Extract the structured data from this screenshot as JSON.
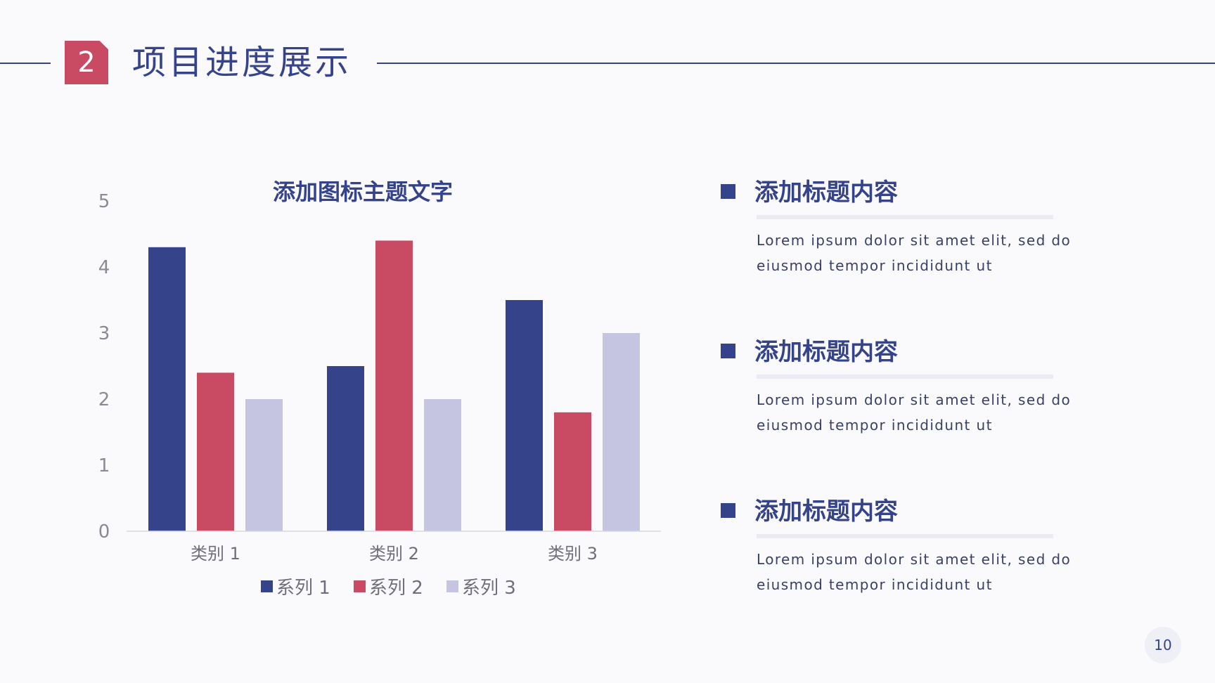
{
  "header": {
    "section_number": "2",
    "title": "项目进度展示"
  },
  "colors": {
    "navy": "#35448a",
    "crimson": "#c84a63",
    "lavender": "#c5c5e1"
  },
  "chart_data": {
    "type": "bar",
    "title": "添加图标主题文字",
    "categories": [
      "类别 1",
      "类别 2",
      "类别 3"
    ],
    "series": [
      {
        "name": "系列 1",
        "color": "#35448a",
        "values": [
          4.3,
          2.5,
          3.5
        ]
      },
      {
        "name": "系列 2",
        "color": "#c84a63",
        "values": [
          2.4,
          4.4,
          1.8
        ]
      },
      {
        "name": "系列 3",
        "color": "#c5c5e1",
        "values": [
          2,
          2,
          3
        ]
      }
    ],
    "ylim": [
      0,
      5
    ],
    "yticks": [
      "0",
      "1",
      "2",
      "3",
      "4",
      "5"
    ],
    "grid": false,
    "legend_position": "bottom"
  },
  "items": [
    {
      "title": "添加标题内容",
      "body_line1": "Lorem ipsum dolor sit amet elit, sed do",
      "body_line2": "eiusmod tempor incididunt ut"
    },
    {
      "title": "添加标题内容",
      "body_line1": "Lorem ipsum dolor sit amet elit, sed do",
      "body_line2": "eiusmod tempor incididunt ut"
    },
    {
      "title": "添加标题内容",
      "body_line1": "Lorem ipsum dolor sit amet elit, sed do",
      "body_line2": "eiusmod tempor incididunt ut"
    }
  ],
  "footer": {
    "page_number": "10"
  }
}
